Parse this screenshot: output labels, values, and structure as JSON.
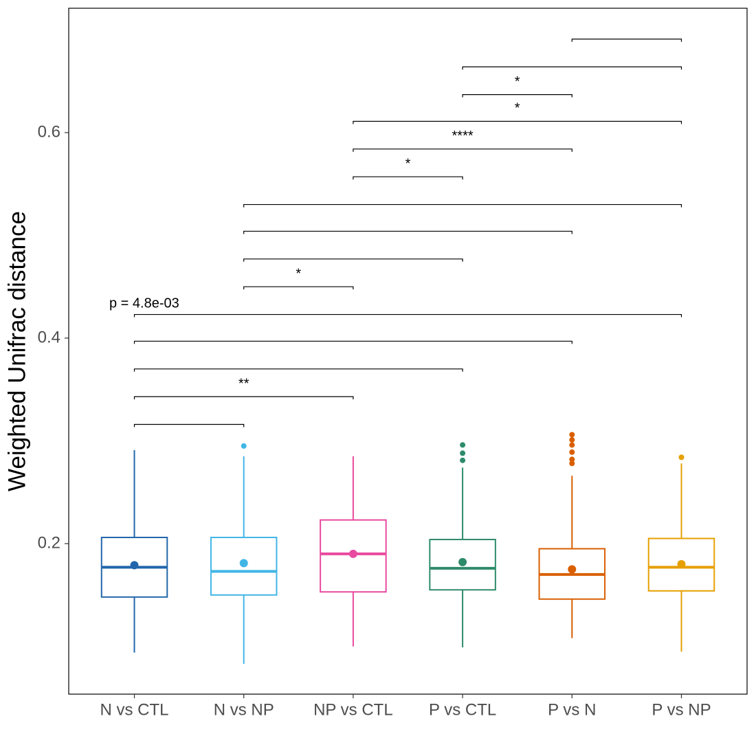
{
  "chart_data": {
    "type": "box",
    "y_label": "Weighted Unifrac distance",
    "categories": [
      "N vs CTL",
      "N vs NP",
      "NP vs CTL",
      "P vs CTL",
      "P vs N",
      "P vs NP"
    ],
    "boxes": [
      {
        "color": "#2166ac",
        "whisker_low": 0.094,
        "q1": 0.148,
        "median": 0.177,
        "q3": 0.206,
        "whisker_high": 0.291,
        "mean": 0.179,
        "outliers": []
      },
      {
        "color": "#41b6e6",
        "whisker_low": 0.083,
        "q1": 0.15,
        "median": 0.173,
        "q3": 0.206,
        "whisker_high": 0.285,
        "mean": 0.181,
        "outliers": [
          0.295
        ]
      },
      {
        "color": "#e84a9f",
        "whisker_low": 0.1,
        "q1": 0.153,
        "median": 0.19,
        "q3": 0.223,
        "whisker_high": 0.285,
        "mean": 0.19,
        "outliers": []
      },
      {
        "color": "#2e8b6a",
        "whisker_low": 0.099,
        "q1": 0.155,
        "median": 0.176,
        "q3": 0.204,
        "whisker_high": 0.274,
        "mean": 0.182,
        "outliers": [
          0.296,
          0.288,
          0.281
        ]
      },
      {
        "color": "#d95f02",
        "whisker_low": 0.108,
        "q1": 0.146,
        "median": 0.17,
        "q3": 0.195,
        "whisker_high": 0.266,
        "mean": 0.175,
        "outliers": [
          0.306,
          0.301,
          0.296,
          0.289,
          0.282,
          0.278
        ]
      },
      {
        "color": "#e69f00",
        "whisker_low": 0.095,
        "q1": 0.154,
        "median": 0.177,
        "q3": 0.205,
        "whisker_high": 0.278,
        "mean": 0.18,
        "outliers": [
          0.284
        ]
      }
    ],
    "comparisons": [
      {
        "groups": [
          "N vs CTL",
          "N vs NP"
        ],
        "y": 0.316
      },
      {
        "groups": [
          "N vs CTL",
          "NP vs CTL"
        ],
        "y": 0.343,
        "label": "**"
      },
      {
        "groups": [
          "N vs CTL",
          "P vs CTL"
        ],
        "y": 0.37
      },
      {
        "groups": [
          "N vs CTL",
          "P vs N"
        ],
        "y": 0.397
      },
      {
        "groups": [
          "N vs CTL",
          "P vs NP"
        ],
        "y": 0.423
      },
      {
        "groups": [
          "N vs NP",
          "NP vs CTL"
        ],
        "y": 0.45,
        "label": "*"
      },
      {
        "groups": [
          "N vs NP",
          "P vs CTL"
        ],
        "y": 0.477
      },
      {
        "groups": [
          "N vs NP",
          "P vs N"
        ],
        "y": 0.504
      },
      {
        "groups": [
          "N vs NP",
          "P vs NP"
        ],
        "y": 0.53
      },
      {
        "groups": [
          "NP vs CTL",
          "P vs CTL"
        ],
        "y": 0.557,
        "label": "*"
      },
      {
        "groups": [
          "NP vs CTL",
          "P vs N"
        ],
        "y": 0.584,
        "label": "****"
      },
      {
        "groups": [
          "NP vs CTL",
          "P vs NP"
        ],
        "y": 0.611,
        "label": "*"
      },
      {
        "groups": [
          "P vs CTL",
          "P vs N"
        ],
        "y": 0.637,
        "label": "*"
      },
      {
        "groups": [
          "P vs CTL",
          "P vs NP"
        ],
        "y": 0.664
      },
      {
        "groups": [
          "P vs N",
          "P vs NP"
        ],
        "y": 0.691
      }
    ],
    "annotation": "p = 4.8e-03",
    "ylim": [
      0.0535,
      0.721
    ],
    "yticks": [
      0.2,
      0.4,
      0.6
    ]
  }
}
